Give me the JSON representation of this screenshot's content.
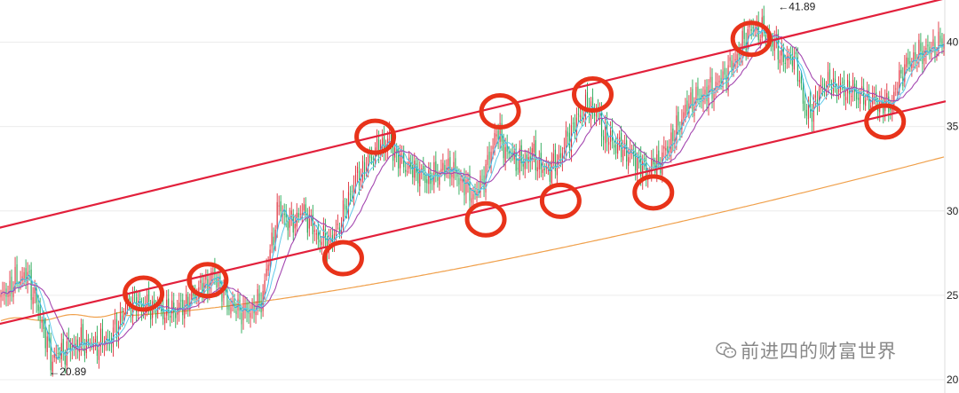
{
  "watermark": {
    "text": "前进四的财富世界",
    "icon": "wechat-icon"
  },
  "chart_data": {
    "type": "candlestick",
    "title": "",
    "xlabel": "",
    "ylabel": "",
    "y_axis_side": "right",
    "ylim": [
      20,
      42.5
    ],
    "yticks": [
      20,
      25,
      30,
      35,
      40
    ],
    "grid": true,
    "colors": {
      "up": "#e0303c",
      "down": "#27a855",
      "ma_short": "#37b5e6",
      "ma_mid": "#a447b0",
      "ma_long": "#f0a04b",
      "channel": "#e2203b",
      "marker": "#e8331a"
    },
    "annotations": [
      {
        "text": "←20.89",
        "x": 28,
        "y": 20.89
      },
      {
        "text": "←41.89",
        "x": 437,
        "y": 41.89
      }
    ],
    "price_anchors": [
      [
        0,
        24.8
      ],
      [
        8,
        25.8
      ],
      [
        15,
        26.2
      ],
      [
        22,
        23.8
      ],
      [
        28,
        21.2
      ],
      [
        36,
        21.8
      ],
      [
        45,
        22.2
      ],
      [
        52,
        22.0
      ],
      [
        62,
        22.5
      ],
      [
        72,
        24.6
      ],
      [
        82,
        24.4
      ],
      [
        92,
        24.0
      ],
      [
        102,
        24.3
      ],
      [
        112,
        25.4
      ],
      [
        120,
        26.2
      ],
      [
        128,
        24.4
      ],
      [
        138,
        24.0
      ],
      [
        146,
        24.6
      ],
      [
        152,
        28.2
      ],
      [
        156,
        30.3
      ],
      [
        162,
        29.2
      ],
      [
        170,
        30.0
      ],
      [
        178,
        28.4
      ],
      [
        186,
        28.2
      ],
      [
        192,
        29.8
      ],
      [
        198,
        31.7
      ],
      [
        205,
        32.7
      ],
      [
        212,
        33.8
      ],
      [
        218,
        34.2
      ],
      [
        222,
        33.2
      ],
      [
        228,
        32.6
      ],
      [
        234,
        32.3
      ],
      [
        240,
        31.9
      ],
      [
        246,
        32.3
      ],
      [
        252,
        32.6
      ],
      [
        258,
        31.8
      ],
      [
        266,
        30.8
      ],
      [
        272,
        32.4
      ],
      [
        278,
        34.8
      ],
      [
        284,
        33.4
      ],
      [
        292,
        32.8
      ],
      [
        298,
        33.4
      ],
      [
        305,
        32.3
      ],
      [
        312,
        32.9
      ],
      [
        320,
        34.8
      ],
      [
        328,
        36.1
      ],
      [
        334,
        36.0
      ],
      [
        338,
        34.6
      ],
      [
        346,
        33.8
      ],
      [
        354,
        33.3
      ],
      [
        362,
        32.3
      ],
      [
        370,
        33.0
      ],
      [
        378,
        34.6
      ],
      [
        386,
        36.4
      ],
      [
        394,
        36.9
      ],
      [
        402,
        37.5
      ],
      [
        408,
        38.3
      ],
      [
        414,
        39.4
      ],
      [
        420,
        40.8
      ],
      [
        428,
        40.6
      ],
      [
        436,
        39.6
      ],
      [
        440,
        38.8
      ],
      [
        444,
        39.3
      ],
      [
        448,
        37.8
      ],
      [
        452,
        35.6
      ],
      [
        456,
        36.3
      ],
      [
        462,
        37.6
      ],
      [
        470,
        37.3
      ],
      [
        478,
        37.1
      ],
      [
        486,
        36.6
      ],
      [
        494,
        36.4
      ],
      [
        500,
        36.3
      ],
      [
        504,
        37.9
      ],
      [
        510,
        38.9
      ],
      [
        516,
        39.4
      ],
      [
        522,
        39.6
      ],
      [
        529,
        40.0
      ]
    ],
    "bar_count": 530,
    "channel_lines": [
      {
        "name": "upper",
        "from": [
          0,
          29.0
        ],
        "to": [
          529,
          42.6
        ]
      },
      {
        "name": "lower",
        "from": [
          0,
          23.3
        ],
        "to": [
          529,
          36.5
        ]
      }
    ],
    "circled_points": [
      {
        "x": 80,
        "y": 25.1
      },
      {
        "x": 116,
        "y": 25.9
      },
      {
        "x": 192,
        "y": 27.2
      },
      {
        "x": 210,
        "y": 34.4
      },
      {
        "x": 272,
        "y": 29.5
      },
      {
        "x": 280,
        "y": 35.9
      },
      {
        "x": 314,
        "y": 30.6
      },
      {
        "x": 332,
        "y": 36.9
      },
      {
        "x": 366,
        "y": 31.1
      },
      {
        "x": 421,
        "y": 40.2
      },
      {
        "x": 496,
        "y": 35.3
      }
    ]
  }
}
